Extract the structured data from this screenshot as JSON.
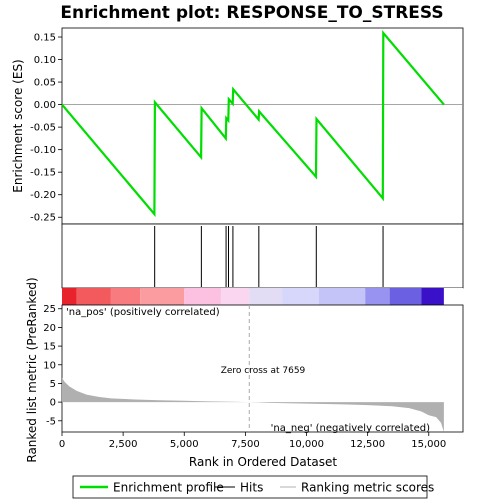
{
  "chart_data": {
    "type": "line",
    "title": "Enrichment plot: RESPONSE_TO_STRESS",
    "xlabel": "Rank in Ordered Dataset",
    "ylabel_top": "Enrichment score (ES)",
    "ylabel_bottom": "Ranked list metric (PreRanked)",
    "xlim": [
      0,
      16400
    ],
    "es_ylim": [
      -0.265,
      0.17
    ],
    "metric_ylim": [
      -8,
      26
    ],
    "x_ticks": [
      0,
      2500,
      5000,
      7500,
      10000,
      12500,
      15000
    ],
    "x_tick_labels": [
      "0",
      "2,500",
      "5,000",
      "7,500",
      "10,000",
      "12,500",
      "15,000"
    ],
    "es_ticks": [
      0.15,
      0.1,
      0.05,
      0.0,
      -0.05,
      -0.1,
      -0.15,
      -0.2,
      -0.25
    ],
    "es_tick_labels": [
      "0.15",
      "0.10",
      "0.05",
      "0.00",
      "-0.05",
      "-0.10",
      "-0.15",
      "-0.20",
      "-0.25"
    ],
    "metric_ticks": [
      25,
      20,
      15,
      10,
      5,
      0,
      -5
    ],
    "metric_tick_labels": [
      "25",
      "20",
      "15",
      "10",
      "5",
      "0",
      "-5"
    ],
    "es_series": {
      "name": "Enrichment profile",
      "x": [
        0,
        3780,
        3800,
        5690,
        5710,
        6700,
        6720,
        6800,
        6820,
        6980,
        7000,
        8040,
        8060,
        10390,
        10410,
        13120,
        13140,
        15620
      ],
      "y": [
        0.0,
        -0.243,
        0.005,
        -0.117,
        -0.008,
        -0.075,
        -0.03,
        -0.035,
        0.012,
        0.002,
        0.034,
        -0.033,
        -0.015,
        -0.16,
        -0.032,
        -0.208,
        0.159,
        0.0
      ]
    },
    "hits": [
      3790,
      5700,
      6710,
      6810,
      6990,
      8050,
      10400,
      13130
    ],
    "metric_profile": {
      "x": [
        0,
        100,
        300,
        600,
        1000,
        1500,
        2000,
        3000,
        4000,
        5000,
        6000,
        7000,
        7659,
        8500,
        10000,
        11500,
        12500,
        13500,
        14200,
        14700,
        15000,
        15300,
        15500,
        15620
      ],
      "y": [
        6.5,
        5.5,
        4.2,
        3.0,
        2.0,
        1.4,
        1.0,
        0.7,
        0.5,
        0.35,
        0.2,
        0.1,
        0.0,
        -0.2,
        -0.4,
        -0.6,
        -0.8,
        -1.1,
        -1.6,
        -2.5,
        -3.5,
        -4.0,
        -5.5,
        -8.0
      ]
    },
    "heat_band": {
      "stops": [
        0,
        600,
        2000,
        3200,
        5000,
        6500,
        7659,
        9000,
        10500,
        12400,
        13400,
        14700,
        15620
      ],
      "colors": [
        "#e8232b",
        "#f25a5e",
        "#f77b7f",
        "#fb9da0",
        "#fcc1e0",
        "#fbd6f0",
        "#e3dcf5",
        "#d7d7fb",
        "#c5c4f8",
        "#9893f0",
        "#6b5fe2",
        "#3a10c9"
      ]
    },
    "zero_cross_label": "Zero cross at 7659",
    "zero_cross_x": 7659,
    "pos_label": "'na_pos' (positively correlated)",
    "neg_label": "'na_neg' (negatively correlated)",
    "colors": {
      "es_line": "#00dd00",
      "hits": "#000000",
      "metric": "#b0b0b0",
      "pos_text": "#e0102a",
      "neg_text": "#1a1acc"
    },
    "legend": {
      "position": "bottom",
      "items": [
        {
          "label": "Enrichment profile",
          "kind": "line",
          "color": "#00dd00"
        },
        {
          "label": "Hits",
          "kind": "line",
          "color": "#000000"
        },
        {
          "label": "Ranking metric scores",
          "kind": "line",
          "color": "#b0b0b0"
        }
      ]
    }
  }
}
